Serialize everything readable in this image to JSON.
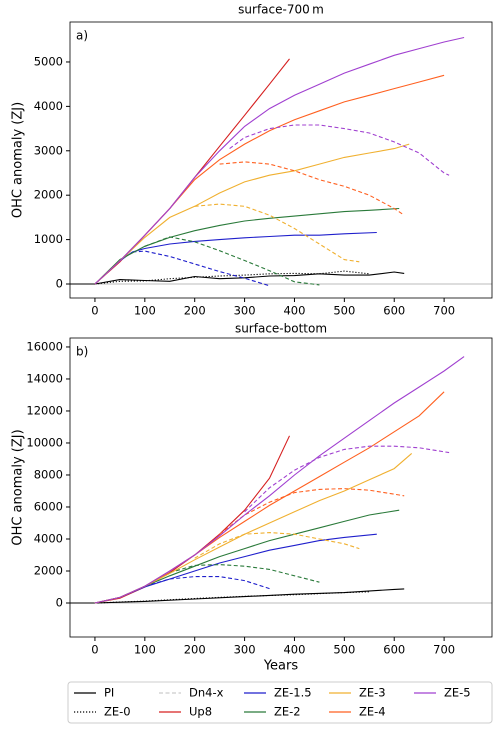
{
  "chart_data": [
    {
      "type": "line",
      "title": "surface-700 m",
      "panel_label": "a)",
      "ylabel": "OHC anomaly (ZJ)",
      "xlim": [
        -50,
        796
      ],
      "ylim": [
        -315,
        5900
      ],
      "xticks": [
        0,
        100,
        200,
        300,
        400,
        500,
        600,
        700
      ],
      "yticks": [
        0,
        1000,
        2000,
        3000,
        4000,
        5000
      ],
      "hline": 0,
      "series": [
        {
          "name": "PI",
          "color": "#000000",
          "dash": "solid",
          "x": [
            -50,
            0,
            50,
            100,
            150,
            200,
            250,
            300,
            350,
            400,
            450,
            500,
            550,
            600,
            620
          ],
          "values": [
            0,
            0,
            100,
            80,
            60,
            170,
            120,
            140,
            180,
            190,
            230,
            200,
            200,
            270,
            240
          ]
        },
        {
          "name": "ZE-0",
          "color": "#000000",
          "dash": "dotted",
          "x": [
            0,
            50,
            100,
            150,
            200,
            250,
            300,
            350,
            400,
            450,
            500,
            550
          ],
          "values": [
            0,
            60,
            70,
            120,
            150,
            180,
            200,
            230,
            240,
            230,
            290,
            230
          ]
        },
        {
          "name": "Up8",
          "color": "#d62020",
          "dash": "solid",
          "x": [
            0,
            50,
            100,
            150,
            200,
            250,
            300,
            350,
            390
          ],
          "values": [
            0,
            500,
            1100,
            1700,
            2400,
            3100,
            3800,
            4500,
            5070
          ]
        },
        {
          "name": "ZE-1.5",
          "color": "#1f1fcc",
          "dash": "solid",
          "x": [
            0,
            50,
            75,
            100,
            150,
            200,
            250,
            300,
            350,
            400,
            450,
            500,
            565
          ],
          "values": [
            0,
            520,
            720,
            800,
            900,
            960,
            1000,
            1040,
            1070,
            1100,
            1100,
            1130,
            1160
          ]
        },
        {
          "color": "#1f1fcc",
          "dash": "dashed",
          "x": [
            75,
            100,
            150,
            200,
            250,
            300,
            350
          ],
          "values": [
            720,
            740,
            620,
            450,
            280,
            130,
            -40
          ]
        },
        {
          "name": "ZE-2",
          "color": "#2a7a3a",
          "dash": "solid",
          "x": [
            0,
            50,
            100,
            150,
            200,
            250,
            300,
            350,
            400,
            450,
            500,
            550,
            610
          ],
          "values": [
            0,
            550,
            850,
            1050,
            1200,
            1320,
            1420,
            1480,
            1530,
            1580,
            1630,
            1660,
            1700
          ]
        },
        {
          "color": "#2a7a3a",
          "dash": "dashed",
          "x": [
            100,
            150,
            200,
            250,
            300,
            350,
            400,
            450
          ],
          "values": [
            850,
            1060,
            950,
            750,
            530,
            300,
            50,
            -20
          ]
        },
        {
          "name": "ZE-3",
          "color": "#f0b030",
          "dash": "solid",
          "x": [
            0,
            50,
            100,
            150,
            200,
            250,
            300,
            350,
            400,
            450,
            500,
            550,
            600,
            630
          ],
          "values": [
            0,
            520,
            1050,
            1500,
            1750,
            2050,
            2300,
            2450,
            2550,
            2700,
            2850,
            2950,
            3050,
            3150
          ]
        },
        {
          "color": "#f0b030",
          "dash": "dashed",
          "x": [
            200,
            250,
            300,
            350,
            400,
            450,
            500,
            530
          ],
          "values": [
            1750,
            1800,
            1750,
            1550,
            1250,
            900,
            550,
            500
          ]
        },
        {
          "name": "ZE-4",
          "color": "#ff6020",
          "dash": "solid",
          "x": [
            0,
            50,
            100,
            150,
            200,
            250,
            300,
            350,
            400,
            450,
            500,
            550,
            600,
            650,
            700
          ],
          "values": [
            0,
            520,
            1100,
            1700,
            2350,
            2800,
            3150,
            3450,
            3700,
            3900,
            4100,
            4250,
            4400,
            4550,
            4700
          ]
        },
        {
          "color": "#ff6020",
          "dash": "dashed",
          "x": [
            250,
            300,
            350,
            400,
            450,
            500,
            550,
            600,
            620
          ],
          "values": [
            2700,
            2750,
            2700,
            2550,
            2350,
            2200,
            2000,
            1700,
            1550
          ]
        },
        {
          "name": "ZE-5",
          "color": "#a040d0",
          "dash": "solid",
          "x": [
            0,
            50,
            100,
            150,
            200,
            250,
            300,
            350,
            400,
            450,
            500,
            550,
            600,
            650,
            700,
            740
          ],
          "values": [
            0,
            520,
            1100,
            1700,
            2400,
            3000,
            3550,
            3950,
            4250,
            4500,
            4750,
            4950,
            5150,
            5300,
            5450,
            5550
          ]
        },
        {
          "color": "#a040d0",
          "dash": "dashed",
          "x": [
            270,
            300,
            350,
            400,
            450,
            500,
            550,
            600,
            650,
            700,
            710
          ],
          "values": [
            3050,
            3300,
            3500,
            3580,
            3580,
            3500,
            3400,
            3200,
            2950,
            2500,
            2450
          ]
        }
      ]
    },
    {
      "type": "line",
      "title": "surface-bottom",
      "panel_label": "b)",
      "ylabel": "OHC anomaly (ZJ)",
      "xlabel": "Years",
      "xlim": [
        -50,
        796
      ],
      "ylim": [
        -2125,
        16560
      ],
      "xticks": [
        0,
        100,
        200,
        300,
        400,
        500,
        600,
        700
      ],
      "yticks": [
        0,
        2000,
        4000,
        6000,
        8000,
        10000,
        12000,
        14000,
        16000
      ],
      "hline": 0,
      "series": [
        {
          "name": "PI",
          "color": "#000000",
          "dash": "solid",
          "x": [
            -50,
            0,
            100,
            200,
            300,
            400,
            500,
            600,
            620
          ],
          "values": [
            0,
            0,
            100,
            250,
            400,
            550,
            650,
            850,
            880
          ]
        },
        {
          "name": "ZE-0",
          "color": "#000000",
          "dash": "dotted",
          "x": [
            0,
            100,
            200,
            300,
            400,
            500,
            550
          ],
          "values": [
            0,
            120,
            280,
            420,
            520,
            650,
            700
          ]
        },
        {
          "name": "Up8",
          "color": "#d62020",
          "dash": "solid",
          "x": [
            0,
            50,
            100,
            150,
            200,
            250,
            300,
            350,
            390
          ],
          "values": [
            0,
            300,
            1000,
            1900,
            3000,
            4300,
            5800,
            7800,
            10450
          ]
        },
        {
          "name": "ZE-1.5",
          "color": "#1f1fcc",
          "dash": "solid",
          "x": [
            0,
            50,
            100,
            150,
            200,
            250,
            300,
            350,
            400,
            450,
            500,
            565
          ],
          "values": [
            0,
            350,
            1000,
            1500,
            2000,
            2500,
            2900,
            3300,
            3600,
            3900,
            4100,
            4300
          ]
        },
        {
          "color": "#1f1fcc",
          "dash": "dashed",
          "x": [
            100,
            150,
            200,
            250,
            300,
            350
          ],
          "values": [
            1050,
            1500,
            1650,
            1650,
            1400,
            900
          ]
        },
        {
          "name": "ZE-2",
          "color": "#2a7a3a",
          "dash": "solid",
          "x": [
            0,
            50,
            100,
            150,
            200,
            250,
            300,
            350,
            400,
            450,
            500,
            550,
            610
          ],
          "values": [
            0,
            350,
            1050,
            1700,
            2300,
            2900,
            3400,
            3900,
            4300,
            4700,
            5100,
            5500,
            5800
          ]
        },
        {
          "color": "#2a7a3a",
          "dash": "dashed",
          "x": [
            150,
            200,
            250,
            300,
            350,
            400,
            450
          ],
          "values": [
            1900,
            2350,
            2400,
            2300,
            2100,
            1700,
            1300
          ]
        },
        {
          "name": "ZE-3",
          "color": "#f0b030",
          "dash": "solid",
          "x": [
            0,
            50,
            100,
            150,
            200,
            250,
            300,
            350,
            400,
            450,
            500,
            550,
            600,
            635
          ],
          "values": [
            0,
            350,
            1050,
            1850,
            2700,
            3500,
            4300,
            5000,
            5700,
            6400,
            7000,
            7700,
            8400,
            9350
          ]
        },
        {
          "color": "#f0b030",
          "dash": "dashed",
          "x": [
            200,
            250,
            300,
            350,
            400,
            450,
            500,
            530
          ],
          "values": [
            2800,
            3700,
            4300,
            4400,
            4300,
            4000,
            3700,
            3400
          ]
        },
        {
          "name": "ZE-4",
          "color": "#ff6020",
          "dash": "solid",
          "x": [
            0,
            50,
            100,
            150,
            200,
            250,
            300,
            350,
            400,
            450,
            500,
            550,
            600,
            650,
            700
          ],
          "values": [
            0,
            350,
            1050,
            2000,
            3000,
            4100,
            5100,
            6100,
            7000,
            7900,
            8800,
            9700,
            10700,
            11700,
            13200
          ]
        },
        {
          "color": "#ff6020",
          "dash": "dashed",
          "x": [
            250,
            300,
            350,
            400,
            450,
            500,
            550,
            620
          ],
          "values": [
            4300,
            5500,
            6300,
            6900,
            7100,
            7150,
            7050,
            6700
          ]
        },
        {
          "name": "ZE-5",
          "color": "#a040d0",
          "dash": "solid",
          "x": [
            0,
            50,
            100,
            150,
            200,
            250,
            300,
            350,
            400,
            450,
            500,
            550,
            600,
            650,
            700,
            740
          ],
          "values": [
            0,
            350,
            1050,
            2000,
            3000,
            4200,
            5500,
            6700,
            8000,
            9200,
            10300,
            11400,
            12500,
            13500,
            14500,
            15400
          ]
        },
        {
          "color": "#a040d0",
          "dash": "dashed",
          "x": [
            300,
            350,
            400,
            450,
            500,
            550,
            600,
            650,
            710
          ],
          "values": [
            5700,
            7200,
            8300,
            9100,
            9600,
            9800,
            9800,
            9700,
            9400
          ]
        }
      ]
    }
  ],
  "legend": [
    {
      "label": "PI",
      "color": "#000000",
      "dash": "solid"
    },
    {
      "label": "ZE-0",
      "color": "#000000",
      "dash": "dotted"
    },
    {
      "label": "Dn4-x",
      "color": "#cccccc",
      "dash": "dashed"
    },
    {
      "label": "Up8",
      "color": "#d62020",
      "dash": "solid"
    },
    {
      "label": "ZE-1.5",
      "color": "#1f1fcc",
      "dash": "solid"
    },
    {
      "label": "ZE-2",
      "color": "#2a7a3a",
      "dash": "solid"
    },
    {
      "label": "ZE-3",
      "color": "#f0b030",
      "dash": "solid"
    },
    {
      "label": "ZE-4",
      "color": "#ff6020",
      "dash": "solid"
    },
    {
      "label": "ZE-5",
      "color": "#a040d0",
      "dash": "solid"
    }
  ]
}
